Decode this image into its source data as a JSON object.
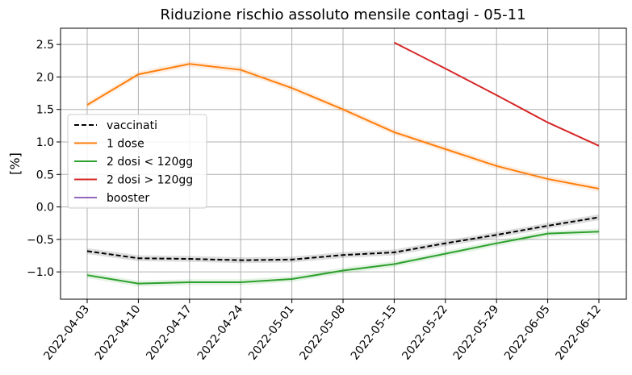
{
  "chart_data": {
    "type": "line",
    "title": "Riduzione rischio assoluto mensile contagi - 05-11",
    "xlabel": "",
    "ylabel": "[%]",
    "ylim": [
      -1.42,
      2.75
    ],
    "yticks": [
      -1.0,
      -0.5,
      0.0,
      0.5,
      1.0,
      1.5,
      2.0,
      2.5
    ],
    "ytick_labels": [
      "−1.0",
      "−0.5",
      "0.0",
      "0.5",
      "1.0",
      "1.5",
      "2.0",
      "2.5"
    ],
    "x": [
      "2022-04-03",
      "2022-04-10",
      "2022-04-17",
      "2022-04-24",
      "2022-05-01",
      "2022-05-08",
      "2022-05-15",
      "2022-05-22",
      "2022-05-29",
      "2022-06-05",
      "2022-06-12"
    ],
    "grid": true,
    "legend_position": "center-left",
    "series": [
      {
        "name": "vaccinati",
        "color": "#000000",
        "dash": true,
        "band": true,
        "values": [
          -0.68,
          -0.79,
          -0.8,
          -0.82,
          -0.81,
          -0.74,
          -0.7,
          -0.56,
          -0.43,
          -0.29,
          -0.16
        ]
      },
      {
        "name": "1 dose",
        "color": "#ff7f0e",
        "dash": false,
        "band": true,
        "values": [
          1.57,
          2.04,
          2.2,
          2.11,
          1.83,
          1.5,
          1.15,
          0.89,
          0.63,
          0.43,
          0.28
        ]
      },
      {
        "name": "2 dosi < 120gg",
        "color": "#2ca02c",
        "dash": false,
        "band": true,
        "values": [
          -1.05,
          -1.18,
          -1.16,
          -1.16,
          -1.11,
          -0.98,
          -0.88,
          -0.72,
          -0.56,
          -0.41,
          -0.38
        ]
      },
      {
        "name": "2 dosi > 120gg",
        "color": "#d62728",
        "dash": false,
        "band": false,
        "values": [
          null,
          null,
          null,
          null,
          null,
          null,
          2.53,
          2.13,
          1.72,
          1.3,
          0.94
        ]
      },
      {
        "name": "booster",
        "color": "#9467bd",
        "dash": false,
        "band": false,
        "values": [
          null,
          null,
          null,
          null,
          null,
          null,
          null,
          null,
          null,
          null,
          null
        ]
      }
    ]
  }
}
